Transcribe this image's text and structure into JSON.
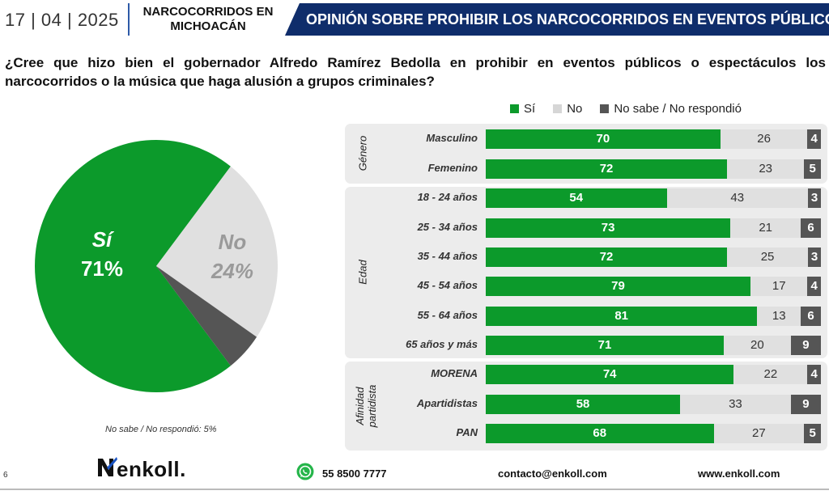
{
  "header": {
    "date": "17 | 04 | 2025",
    "topic": "NARCOCORRIDOS EN MICHOACÁN",
    "banner": "OPINIÓN SOBRE PROHIBIR LOS NARCOCORRIDOS EN EVENTOS PÚBLICOS"
  },
  "question": "¿Cree que hizo bien el gobernador Alfredo Ramírez Bedolla en prohibir en eventos públicos o espectáculos los narcocorridos o la música que haga alusión a grupos criminales?",
  "legend": {
    "si": "Sí",
    "no": "No",
    "ns": "No sabe / No respondió"
  },
  "colors": {
    "si": "#0c9a2b",
    "no": "#e0e0e0",
    "ns": "#555555",
    "banner": "#0f2d6b"
  },
  "pie_note": "No sabe / No respondió: 5%",
  "footer": {
    "page": "6",
    "logo": "enkoll.",
    "phone": "55 8500 7777",
    "email": "contacto@enkoll.com",
    "web": "www.enkoll.com",
    "phone_icon": "whatsapp-icon"
  },
  "chart_data": [
    {
      "type": "pie",
      "categories": [
        "Sí",
        "No",
        "No sabe / No respondió"
      ],
      "values": [
        71,
        24,
        5
      ],
      "labels": [
        {
          "name": "Sí",
          "pct": "71%"
        },
        {
          "name": "No",
          "pct": "24%"
        }
      ]
    },
    {
      "type": "bar",
      "stacked": true,
      "orientation": "horizontal",
      "xlim": [
        0,
        100
      ],
      "groups": [
        {
          "name": "Género",
          "rows": [
            {
              "category": "Masculino",
              "si": 70,
              "no": 26,
              "ns": 4
            },
            {
              "category": "Femenino",
              "si": 72,
              "no": 23,
              "ns": 5
            }
          ]
        },
        {
          "name": "Edad",
          "rows": [
            {
              "category": "18 - 24 años",
              "si": 54,
              "no": 43,
              "ns": 3
            },
            {
              "category": "25 - 34 años",
              "si": 73,
              "no": 21,
              "ns": 6
            },
            {
              "category": "35 - 44 años",
              "si": 72,
              "no": 25,
              "ns": 3
            },
            {
              "category": "45 - 54 años",
              "si": 79,
              "no": 17,
              "ns": 4
            },
            {
              "category": "55 - 64 años",
              "si": 81,
              "no": 13,
              "ns": 6
            },
            {
              "category": "65  años y más",
              "si": 71,
              "no": 20,
              "ns": 9
            }
          ]
        },
        {
          "name": "Afinidad partidista",
          "rows": [
            {
              "category": "MORENA",
              "si": 74,
              "no": 22,
              "ns": 4
            },
            {
              "category": "Apartidistas",
              "si": 58,
              "no": 33,
              "ns": 9
            },
            {
              "category": "PAN",
              "si": 68,
              "no": 27,
              "ns": 5
            }
          ]
        }
      ],
      "series": [
        {
          "name": "Sí"
        },
        {
          "name": "No"
        },
        {
          "name": "No sabe / No respondió"
        }
      ]
    }
  ]
}
